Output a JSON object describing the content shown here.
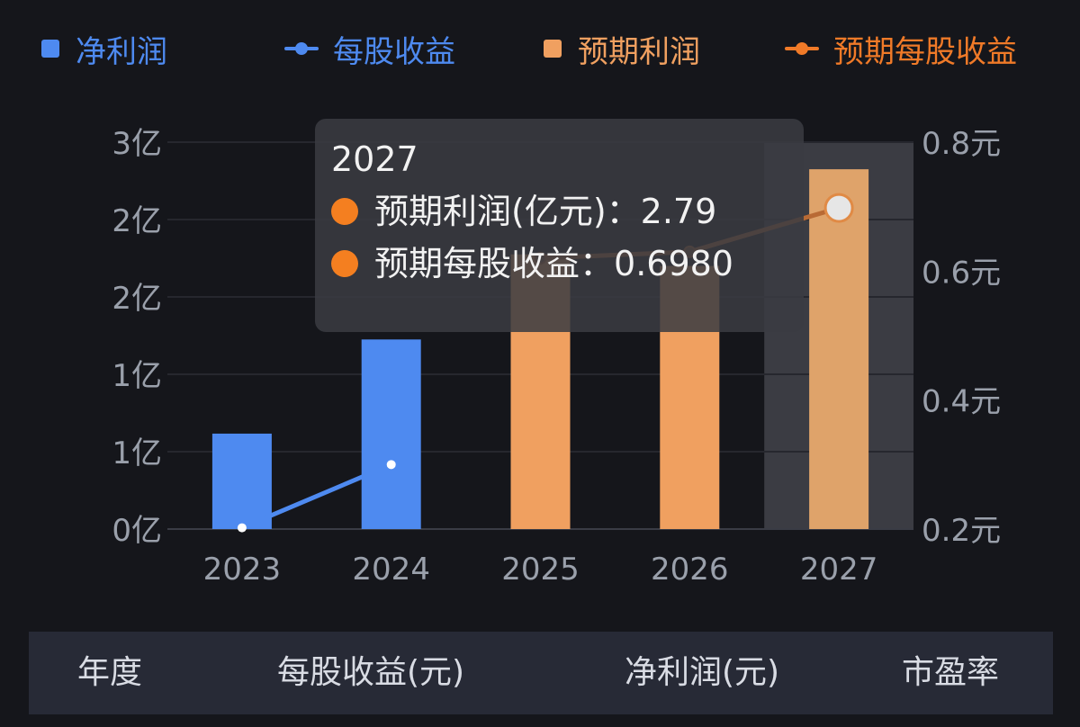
{
  "legend": [
    {
      "label": "净利润",
      "type": "square",
      "color": "#4e8af0"
    },
    {
      "label": "每股收益",
      "type": "line",
      "color": "#4e8af0"
    },
    {
      "label": "预期利润",
      "type": "square",
      "color": "#f0a060"
    },
    {
      "label": "预期每股收益",
      "type": "line",
      "color": "#f07a28"
    }
  ],
  "chart_data": {
    "type": "bar",
    "categories": [
      "2023",
      "2024",
      "2025",
      "2026",
      "2027"
    ],
    "series": [
      {
        "name": "净利润",
        "kind": "bar",
        "axis": "left",
        "color": "#4e8af0",
        "values": [
          0.74,
          1.47,
          null,
          null,
          null
        ]
      },
      {
        "name": "预期利润",
        "kind": "bar",
        "axis": "left",
        "color": "#f0a060",
        "values": [
          null,
          null,
          2.13,
          2.04,
          2.79
        ]
      },
      {
        "name": "每股收益",
        "kind": "line",
        "axis": "right",
        "color": "#4e8af0",
        "values": [
          0.202,
          0.3,
          null,
          null,
          null
        ]
      },
      {
        "name": "预期每股收益",
        "kind": "line",
        "axis": "right",
        "color": "#f07a28",
        "values": [
          null,
          null,
          0.62,
          0.63,
          0.698
        ]
      }
    ],
    "left_axis": {
      "ticks": [
        "0亿",
        "1亿",
        "1亿",
        "2亿",
        "2亿",
        "3亿"
      ],
      "ylim": [
        0,
        3
      ]
    },
    "right_axis": {
      "ticks": [
        "0.2元",
        "0.4元",
        "0.6元",
        "0.8元"
      ],
      "ylim": [
        0.2,
        0.8
      ]
    },
    "highlighted_category": "2027",
    "grid": true
  },
  "tooltip": {
    "title": "2027",
    "rows": [
      {
        "label": "预期利润(亿元)：",
        "value": "2.79",
        "color": "#f47f20"
      },
      {
        "label": "预期每股收益：",
        "value": "0.6980",
        "color": "#f47f20"
      }
    ]
  },
  "table": {
    "headers": [
      "年度",
      "每股收益(元)",
      "净利润(元)",
      "市盈率"
    ]
  }
}
